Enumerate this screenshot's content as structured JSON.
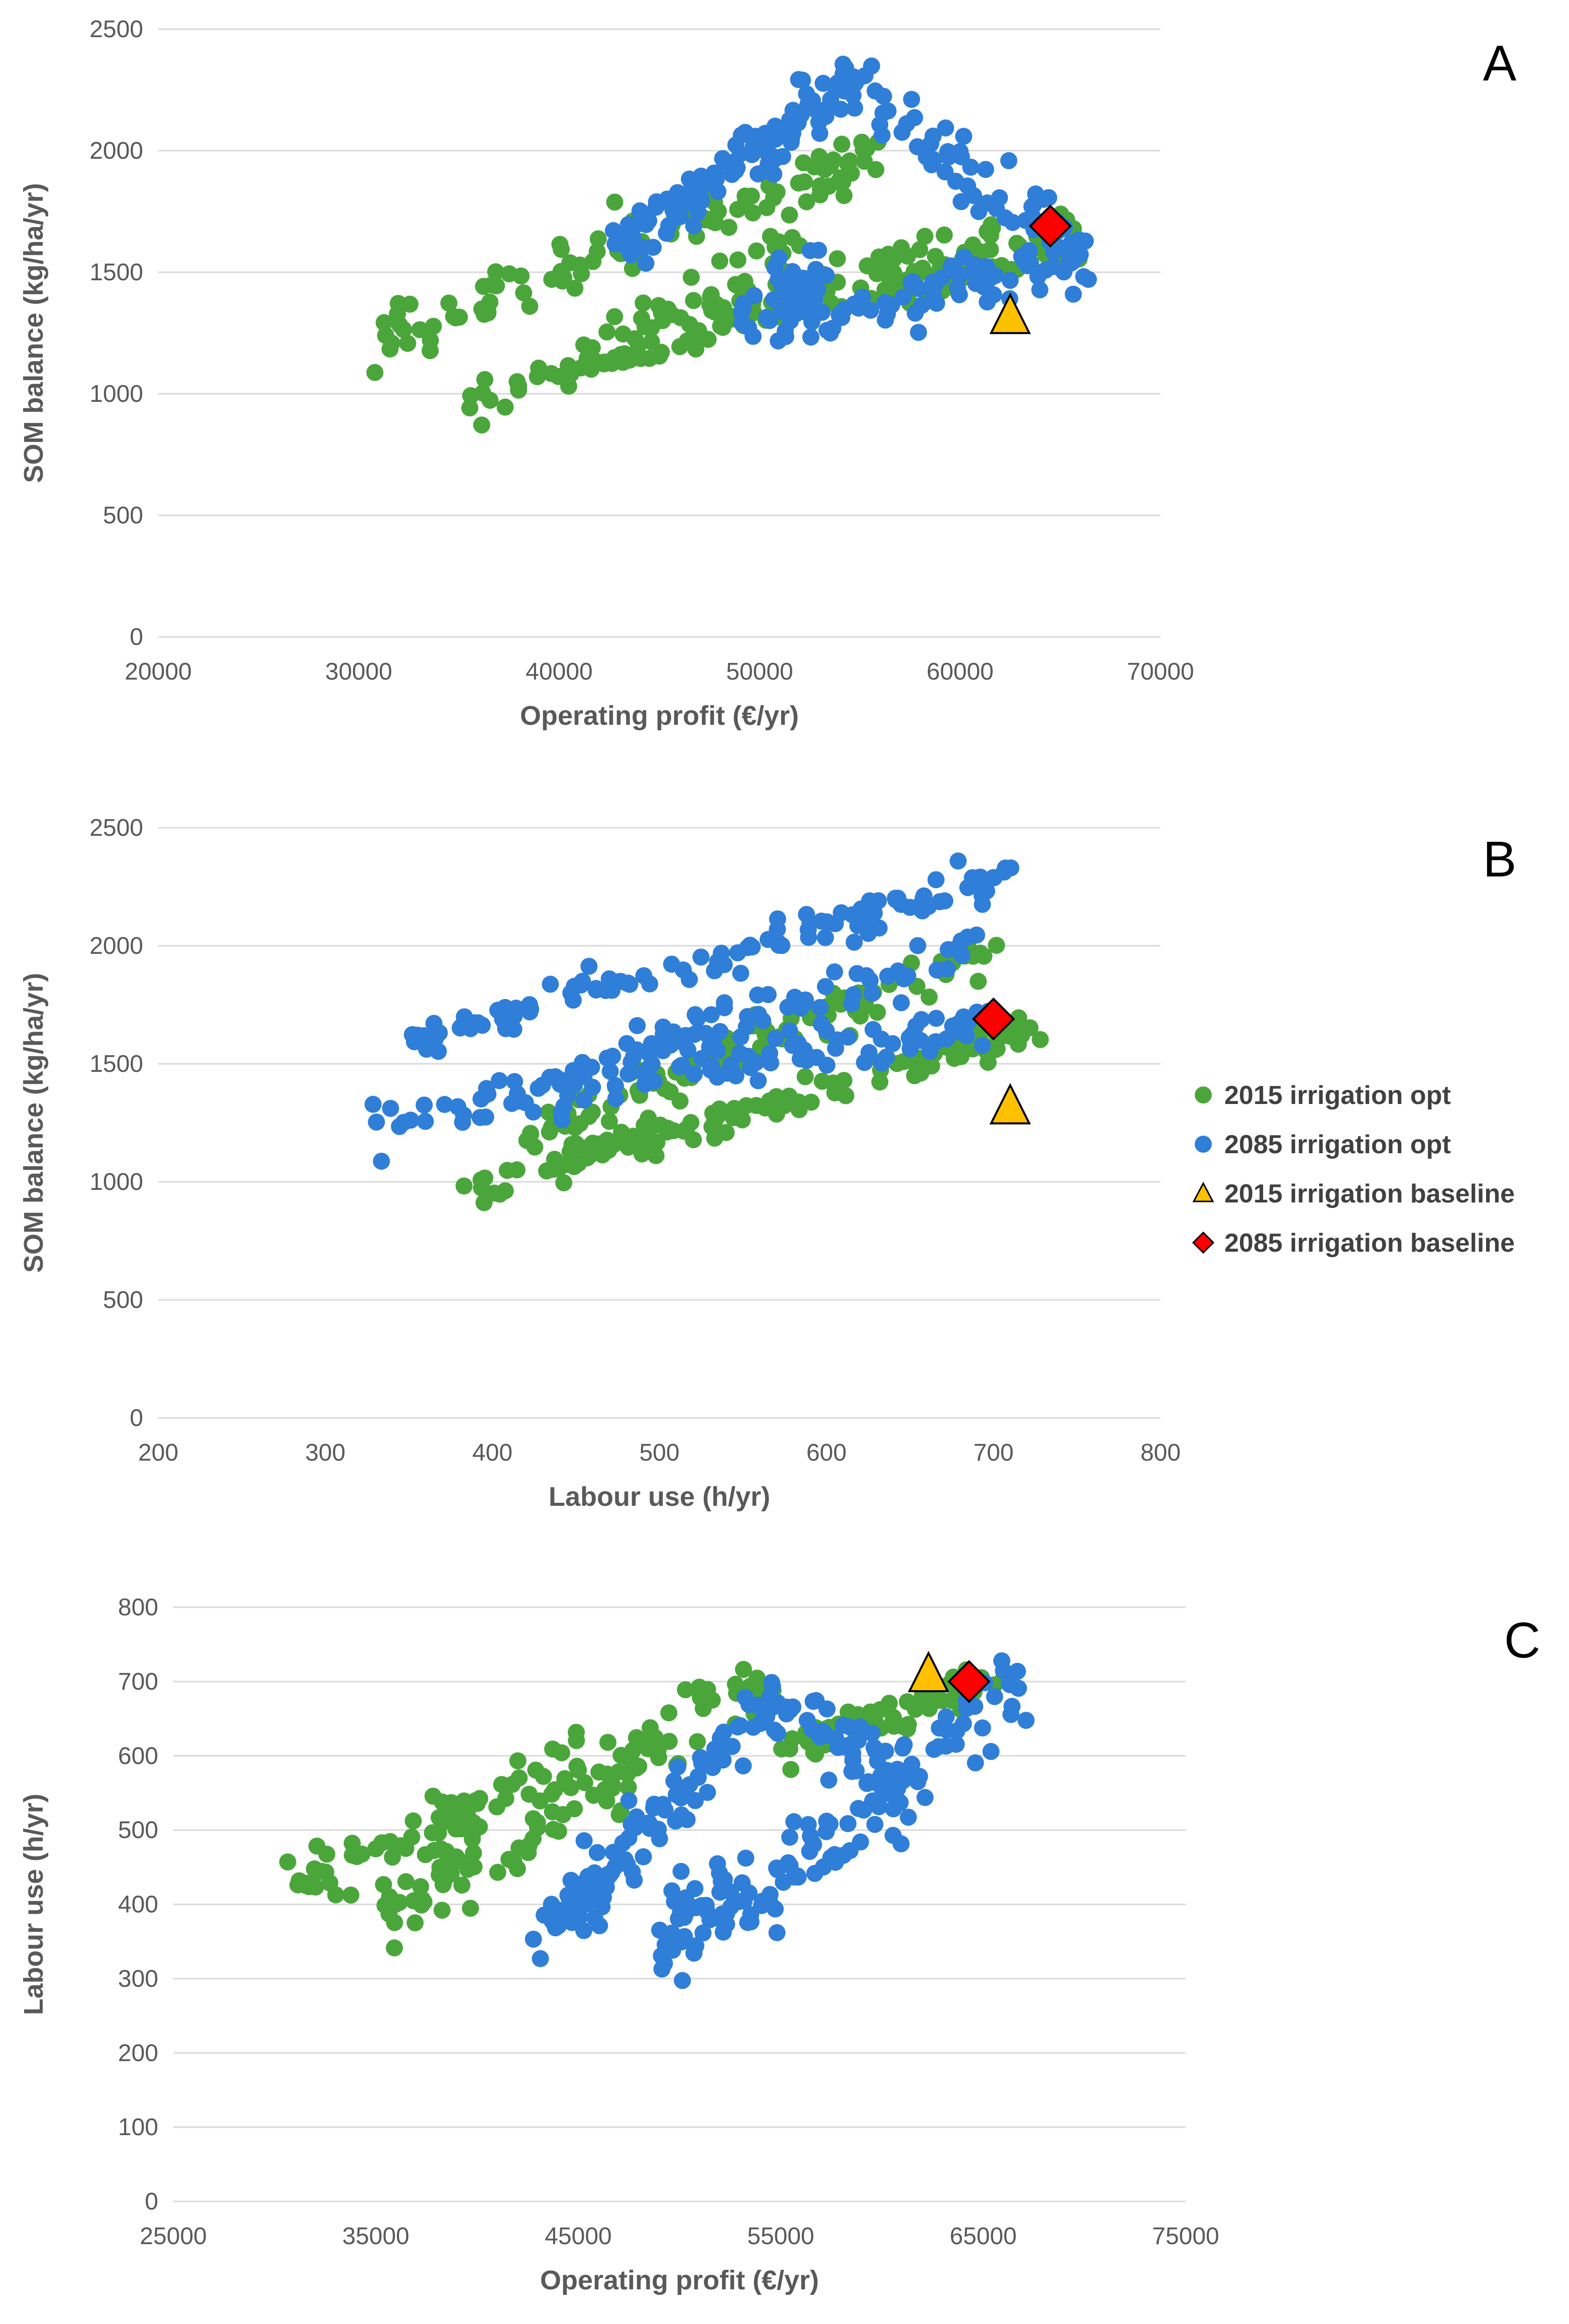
{
  "legend": {
    "entries": [
      {
        "name": "2015 irrigation opt",
        "marker": "circle",
        "color": "#4aa63a"
      },
      {
        "name": "2085 irrigation opt",
        "marker": "circle",
        "color": "#2f7ed8"
      },
      {
        "name": "2015 irrigation baseline",
        "marker": "triangle",
        "color": "#ffc000"
      },
      {
        "name": "2085 irrigation baseline",
        "marker": "diamond",
        "color": "#ff0000"
      }
    ]
  },
  "chart_data": [
    {
      "type": "scatter",
      "panel_label": "A",
      "xlabel": "Operating profit (€/yr)",
      "ylabel": "SOM balance  (kg/ha/yr)",
      "xlim": [
        20000,
        70000
      ],
      "ylim": [
        0,
        2500
      ],
      "xticks": [
        20000,
        30000,
        40000,
        50000,
        60000,
        70000
      ],
      "yticks": [
        0,
        500,
        1000,
        1500,
        2000,
        2500
      ],
      "grid": "horizontal",
      "series": [
        {
          "name": "2015 irrigation opt",
          "marker": "circle",
          "color": "#4aa63a",
          "bands": [
            {
              "from": [
                35000,
                970
              ],
              "to": [
                62000,
                1650
              ],
              "spread": 55,
              "n": 110
            },
            {
              "from": [
                31000,
                1220
              ],
              "to": [
                56000,
                1980
              ],
              "spread": 55,
              "n": 110
            },
            {
              "from": [
                43000,
                1250
              ],
              "to": [
                52000,
                1600
              ],
              "spread": 60,
              "n": 40
            },
            {
              "from": [
                56000,
                1420
              ],
              "to": [
                66000,
                1630
              ],
              "spread": 45,
              "n": 60
            }
          ]
        },
        {
          "name": "2085 irrigation opt",
          "marker": "circle",
          "color": "#2f7ed8",
          "bands": [
            {
              "from": [
                43000,
                1600
              ],
              "to": [
                55000,
                2300
              ],
              "spread": 60,
              "n": 120
            },
            {
              "from": [
                49000,
                1300
              ],
              "to": [
                53000,
                1500
              ],
              "spread": 80,
              "n": 40
            },
            {
              "from": [
                51000,
                1280
              ],
              "to": [
                66500,
                1600
              ],
              "spread": 60,
              "n": 80
            },
            {
              "from": [
                55000,
                2220
              ],
              "to": [
                66000,
                1580
              ],
              "spread": 70,
              "n": 60
            }
          ]
        },
        {
          "name": "2015 irrigation baseline",
          "marker": "triangle",
          "color": "#ffc000",
          "points": [
            [
              62500,
              1320
            ]
          ]
        },
        {
          "name": "2085 irrigation baseline",
          "marker": "diamond",
          "color": "#ff0000",
          "points": [
            [
              64500,
              1690
            ]
          ]
        }
      ]
    },
    {
      "type": "scatter",
      "panel_label": "B",
      "xlabel": "Labour use (h/yr)",
      "ylabel": "SOM balance  (kg/ha/yr)",
      "xlim": [
        200,
        800
      ],
      "ylim": [
        0,
        2500
      ],
      "xticks": [
        200,
        300,
        400,
        500,
        600,
        700,
        800
      ],
      "yticks": [
        0,
        500,
        1000,
        1500,
        2000,
        2500
      ],
      "grid": "horizontal",
      "series": [
        {
          "name": "2015 irrigation opt",
          "marker": "circle",
          "color": "#4aa63a",
          "bands": [
            {
              "from": [
                383,
                960
              ],
              "to": [
                725,
                1650
              ],
              "spread": 40,
              "n": 130
            },
            {
              "from": [
                420,
                1200
              ],
              "to": [
                705,
                2010
              ],
              "spread": 50,
              "n": 110
            }
          ]
        },
        {
          "name": "2085 irrigation opt",
          "marker": "circle",
          "color": "#2f7ed8",
          "bands": [
            {
              "from": [
                330,
                1250
              ],
              "to": [
                700,
                1680
              ],
              "spread": 45,
              "n": 110
            },
            {
              "from": [
                350,
                1590
              ],
              "to": [
                710,
                2300
              ],
              "spread": 40,
              "n": 120
            },
            {
              "from": [
                440,
                1420
              ],
              "to": [
                690,
                2000
              ],
              "spread": 50,
              "n": 80
            }
          ]
        },
        {
          "name": "2015 irrigation baseline",
          "marker": "triangle",
          "color": "#ffc000",
          "points": [
            [
              710,
              1320
            ]
          ]
        },
        {
          "name": "2085 irrigation baseline",
          "marker": "diamond",
          "color": "#ff0000",
          "points": [
            [
              700,
              1690
            ]
          ]
        }
      ]
    },
    {
      "type": "scatter",
      "panel_label": "C",
      "xlabel": "Operating profit (€/yr)",
      "ylabel": "Labour use (h/yr)",
      "xlim": [
        25000,
        75000
      ],
      "ylim": [
        0,
        800
      ],
      "xticks": [
        25000,
        35000,
        45000,
        55000,
        65000,
        75000
      ],
      "yticks": [
        0,
        100,
        200,
        300,
        400,
        500,
        600,
        700,
        800
      ],
      "grid": "horizontal",
      "series": [
        {
          "name": "2015 irrigation opt",
          "marker": "circle",
          "color": "#4aa63a",
          "bands": [
            {
              "from": [
                31000,
                420
              ],
              "to": [
                55000,
                700
              ],
              "spread": 22,
              "n": 110
            },
            {
              "from": [
                35000,
                385
              ],
              "to": [
                49000,
                590
              ],
              "spread": 22,
              "n": 70
            },
            {
              "from": [
                55000,
                610
              ],
              "to": [
                66000,
                710
              ],
              "spread": 15,
              "n": 60
            }
          ]
        },
        {
          "name": "2085 irrigation opt",
          "marker": "circle",
          "color": "#2f7ed8",
          "bands": [
            {
              "from": [
                43000,
                350
              ],
              "to": [
                55500,
                700
              ],
              "spread": 25,
              "n": 120
            },
            {
              "from": [
                49000,
                340
              ],
              "to": [
                52500,
                420
              ],
              "spread": 30,
              "n": 40
            },
            {
              "from": [
                53000,
                400
              ],
              "to": [
                67000,
                695
              ],
              "spread": 30,
              "n": 100
            },
            {
              "from": [
                56000,
                650
              ],
              "to": [
                61000,
                560
              ],
              "spread": 30,
              "n": 30
            }
          ]
        },
        {
          "name": "2015 irrigation baseline",
          "marker": "triangle",
          "color": "#ffc000",
          "points": [
            [
              62300,
              710
            ]
          ]
        },
        {
          "name": "2085 irrigation baseline",
          "marker": "diamond",
          "color": "#ff0000",
          "points": [
            [
              64300,
              700
            ]
          ]
        }
      ]
    }
  ]
}
